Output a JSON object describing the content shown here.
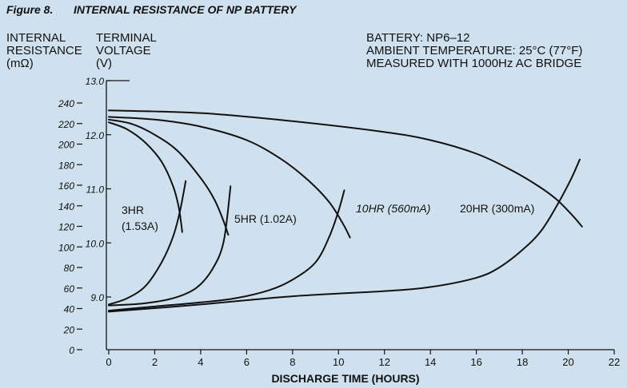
{
  "header": {
    "figure_label": "Figure 8.",
    "figure_title": "INTERNAL RESISTANCE OF NP BATTERY",
    "left_axis_title": [
      "INTERNAL",
      "RESISTANCE",
      "(mΩ)"
    ],
    "right_axis_title": [
      "TERMINAL",
      "VOLTAGE",
      "(V)"
    ],
    "info": [
      "BATTERY: NP6–12",
      "AMBIENT TEMPERATURE: 25°C (77°F)",
      "MEASURED WITH 1000Hz AC BRIDGE"
    ]
  },
  "chart_data": {
    "type": "line",
    "title": "INTERNAL RESISTANCE OF NP BATTERY",
    "xlabel": "DISCHARGE TIME (HOURS)",
    "ylabel_resistance": "INTERNAL RESISTANCE (mΩ)",
    "ylabel_voltage": "TERMINAL VOLTAGE (V)",
    "xlim": [
      0,
      22
    ],
    "ylim_resistance": [
      0,
      240
    ],
    "ylim_voltage": [
      8.1,
      13.0
    ],
    "grid": false,
    "x_ticks": [
      "0",
      "2",
      "4",
      "6",
      "8",
      "10",
      "12",
      "14",
      "16",
      "18",
      "20",
      "22"
    ],
    "resistance_ticks": [
      "0",
      "20",
      "40",
      "60",
      "80",
      "100",
      "120",
      "140",
      "160",
      "180",
      "200",
      "220",
      "240"
    ],
    "voltage_ticks": [
      "9.0",
      "10.0",
      "11.0",
      "12.0",
      "13.0"
    ],
    "series": [
      {
        "name": "3HR (1.53A)",
        "label_lines": [
          "3HR",
          "(1.53A)"
        ],
        "voltage": [
          [
            0,
            12.23
          ],
          [
            0.8,
            12.1
          ],
          [
            1.6,
            11.85
          ],
          [
            2.3,
            11.5
          ],
          [
            2.8,
            11.05
          ],
          [
            3.05,
            10.65
          ],
          [
            3.2,
            10.2
          ]
        ],
        "resistance": [
          [
            0,
            44
          ],
          [
            0.8,
            50
          ],
          [
            1.6,
            62
          ],
          [
            2.3,
            85
          ],
          [
            2.8,
            110
          ],
          [
            3.1,
            135
          ],
          [
            3.35,
            164
          ]
        ]
      },
      {
        "name": "5HR (1.02A)",
        "label_lines": [
          "5HR (1.02A)"
        ],
        "voltage": [
          [
            0,
            12.28
          ],
          [
            1,
            12.2
          ],
          [
            2,
            12.0
          ],
          [
            3,
            11.7
          ],
          [
            4,
            11.2
          ],
          [
            4.6,
            10.8
          ],
          [
            5.0,
            10.4
          ],
          [
            5.2,
            10.15
          ]
        ],
        "resistance": [
          [
            0,
            43
          ],
          [
            1.5,
            45
          ],
          [
            2.8,
            50
          ],
          [
            3.8,
            60
          ],
          [
            4.5,
            78
          ],
          [
            5.0,
            105
          ],
          [
            5.3,
            159
          ]
        ]
      },
      {
        "name": "10HR (560mA)",
        "label_lines": [
          "10HR (560mA)"
        ],
        "voltage": [
          [
            0,
            12.33
          ],
          [
            2,
            12.28
          ],
          [
            4,
            12.15
          ],
          [
            6,
            11.9
          ],
          [
            7.5,
            11.55
          ],
          [
            8.7,
            11.15
          ],
          [
            9.6,
            10.75
          ],
          [
            10.2,
            10.35
          ],
          [
            10.5,
            10.1
          ]
        ],
        "resistance": [
          [
            0,
            38
          ],
          [
            2,
            42
          ],
          [
            4,
            46
          ],
          [
            5.5,
            50
          ],
          [
            7,
            58
          ],
          [
            8,
            68
          ],
          [
            9,
            85
          ],
          [
            9.6,
            110
          ],
          [
            10.0,
            135
          ],
          [
            10.25,
            155
          ]
        ]
      },
      {
        "name": "20HR (300mA)",
        "label_lines": [
          "20HR (300mA)"
        ],
        "voltage": [
          [
            0,
            12.45
          ],
          [
            4,
            12.4
          ],
          [
            8,
            12.25
          ],
          [
            12,
            12.05
          ],
          [
            14,
            11.9
          ],
          [
            16,
            11.65
          ],
          [
            17.5,
            11.35
          ],
          [
            18.7,
            11.05
          ],
          [
            19.5,
            10.8
          ],
          [
            20.2,
            10.5
          ],
          [
            20.6,
            10.3
          ]
        ],
        "resistance": [
          [
            0,
            37
          ],
          [
            4,
            44
          ],
          [
            8,
            52
          ],
          [
            12,
            57
          ],
          [
            14,
            61
          ],
          [
            16,
            70
          ],
          [
            17,
            80
          ],
          [
            18,
            97
          ],
          [
            18.8,
            115
          ],
          [
            19.5,
            140
          ],
          [
            20.1,
            165
          ],
          [
            20.5,
            185
          ]
        ]
      }
    ]
  }
}
